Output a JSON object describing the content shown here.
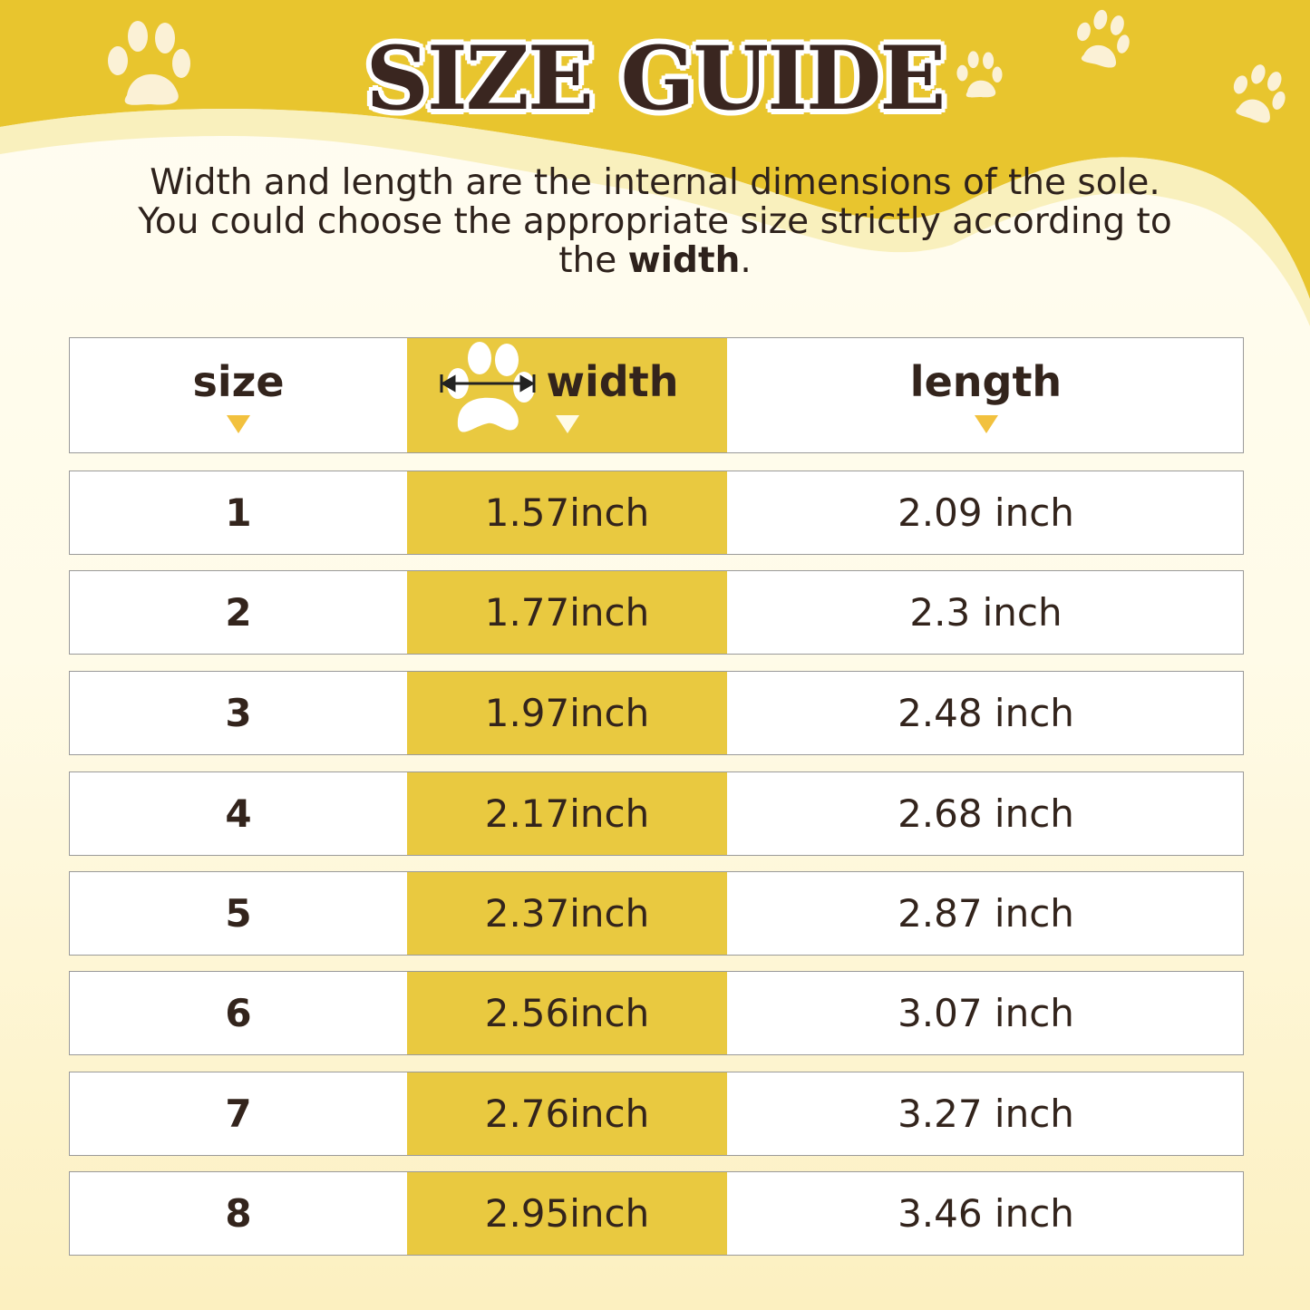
{
  "title": "SIZE GUIDE",
  "description": {
    "line_before": "Width and length are the internal dimensions of the sole. You could choose the appropriate size strictly according to the ",
    "bold": "width",
    "line_after": "."
  },
  "colors": {
    "accent_yellow": "#e9c940",
    "banner_yellow": "#e8c52e",
    "text_brown": "#33241c",
    "cream": "#fffdf2"
  },
  "table": {
    "headers": {
      "size": "size",
      "width": "width",
      "length": "length",
      "width_icon": "paw-width-arrow-icon"
    },
    "rows": [
      {
        "size": "1",
        "width": "1.57inch",
        "length": "2.09 inch"
      },
      {
        "size": "2",
        "width": "1.77inch",
        "length": "2.3 inch"
      },
      {
        "size": "3",
        "width": "1.97inch",
        "length": "2.48 inch"
      },
      {
        "size": "4",
        "width": "2.17inch",
        "length": "2.68 inch"
      },
      {
        "size": "5",
        "width": "2.37inch",
        "length": "2.87 inch"
      },
      {
        "size": "6",
        "width": "2.56inch",
        "length": "3.07 inch"
      },
      {
        "size": "7",
        "width": "2.76inch",
        "length": "3.27 inch"
      },
      {
        "size": "8",
        "width": "2.95inch",
        "length": "3.46 inch"
      }
    ]
  }
}
